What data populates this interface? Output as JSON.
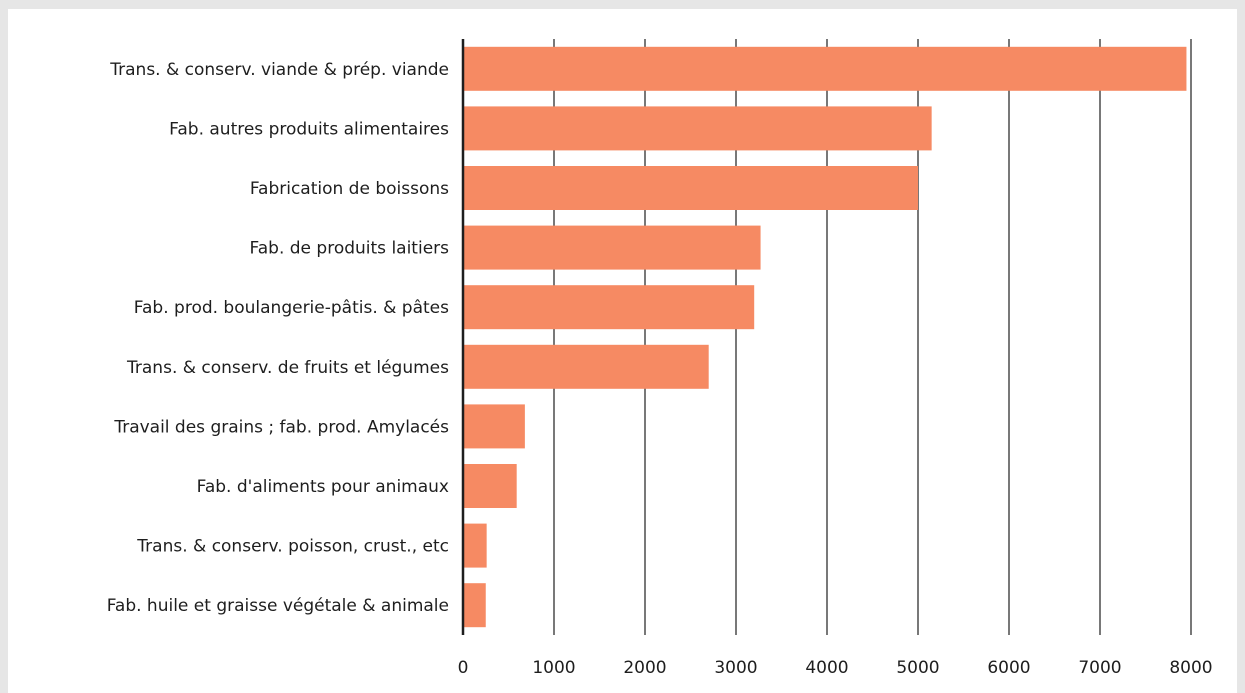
{
  "chart_data": {
    "type": "bar",
    "orientation": "horizontal",
    "categories": [
      "Trans. & conserv. viande & prép. viande",
      "Fab. autres produits alimentaires",
      "Fabrication de boissons",
      "Fab. de produits laitiers",
      "Fab. prod. boulangerie-pâtis. & pâtes",
      "Trans. & conserv. de fruits et légumes",
      "Travail des grains ; fab. prod. Amylacés",
      "Fab. d'aliments pour animaux",
      "Trans. & conserv. poisson, crust., etc",
      "Fab. huile et graisse végétale & animale"
    ],
    "values": [
      7950,
      5150,
      5000,
      3270,
      3200,
      2700,
      680,
      590,
      260,
      250
    ],
    "xlim": [
      0,
      8000
    ],
    "xticks": [
      0,
      1000,
      2000,
      3000,
      4000,
      5000,
      6000,
      7000,
      8000
    ],
    "title": "",
    "xlabel": "",
    "ylabel": "",
    "grid": true,
    "colors": {
      "bar": "#f68a63",
      "axis": "#1e1e1e",
      "background": "#e6e6e6",
      "panel": "#ffffff"
    }
  }
}
